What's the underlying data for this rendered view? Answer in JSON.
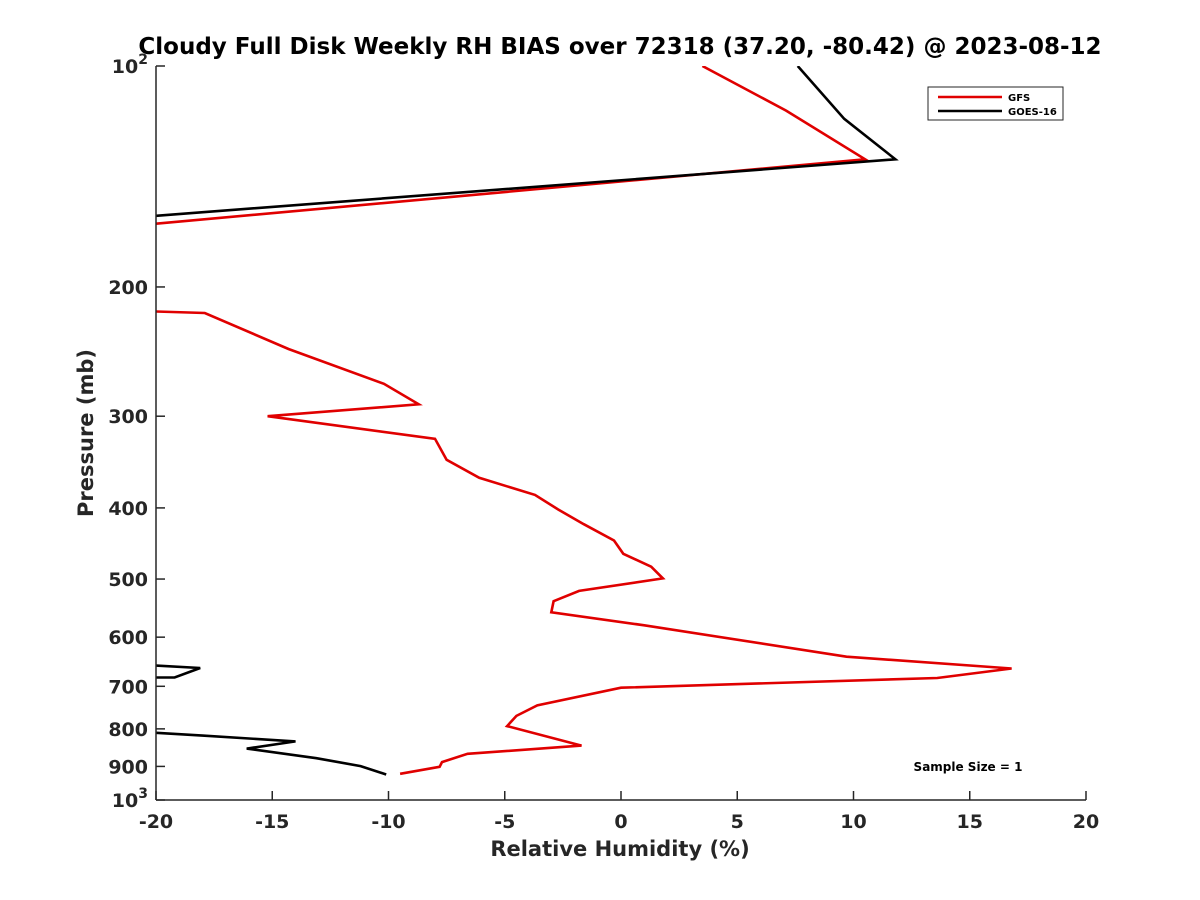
{
  "chart_data": {
    "type": "line",
    "title": "Cloudy Full Disk Weekly RH BIAS over 72318 (37.20, -80.42) @ 2023-08-12",
    "xlabel": "Relative Humidity (%)",
    "ylabel": "Pressure (mb)",
    "xlim": [
      -20,
      20
    ],
    "ylim": [
      100,
      1000
    ],
    "yscale": "log",
    "yreversed": true,
    "grid": false,
    "legend_position": "top-right",
    "x_ticks": [
      {
        "value": -20,
        "label": "-20"
      },
      {
        "value": -15,
        "label": "-15"
      },
      {
        "value": -10,
        "label": "-10"
      },
      {
        "value": -5,
        "label": "-5"
      },
      {
        "value": 0,
        "label": "0"
      },
      {
        "value": 5,
        "label": "5"
      },
      {
        "value": 10,
        "label": "10"
      },
      {
        "value": 15,
        "label": "15"
      },
      {
        "value": 20,
        "label": "20"
      }
    ],
    "y_ticks": [
      {
        "value": 100,
        "label": "",
        "base": "10",
        "exp": "2"
      },
      {
        "value": 200,
        "label": "200"
      },
      {
        "value": 300,
        "label": "300"
      },
      {
        "value": 400,
        "label": "400"
      },
      {
        "value": 500,
        "label": "500"
      },
      {
        "value": 600,
        "label": "600"
      },
      {
        "value": 700,
        "label": "700"
      },
      {
        "value": 800,
        "label": "800"
      },
      {
        "value": 900,
        "label": "900"
      },
      {
        "value": 1000,
        "label": "",
        "base": "10",
        "exp": "3"
      }
    ],
    "series": [
      {
        "name": "GFS",
        "color": "#e00000",
        "segments": [
          [
            [
              3.5,
              100
            ],
            [
              7.1,
              115
            ],
            [
              10.5,
              134
            ],
            [
              -20,
              164
            ]
          ],
          [
            [
              -20,
              216
            ],
            [
              -17.9,
              217
            ],
            [
              -14.3,
              243
            ],
            [
              -10.2,
              271
            ],
            [
              -8.7,
              289
            ],
            [
              -15.2,
              300
            ],
            [
              -8.0,
              322
            ],
            [
              -7.5,
              344
            ],
            [
              -6.1,
              364
            ],
            [
              -3.7,
              384
            ],
            [
              -2.7,
              402
            ],
            [
              -1.6,
              421
            ],
            [
              -0.3,
              443
            ],
            [
              0.1,
              462
            ],
            [
              1.3,
              481
            ],
            [
              1.8,
              499
            ],
            [
              -1.8,
              519
            ],
            [
              -2.9,
              536
            ],
            [
              -3.0,
              555
            ],
            [
              1.0,
              578
            ],
            [
              9.7,
              638
            ],
            [
              16.8,
              662
            ],
            [
              13.6,
              682
            ],
            [
              0,
              703
            ],
            [
              -3.6,
              743
            ],
            [
              -4.5,
              768
            ],
            [
              -4.9,
              793
            ],
            [
              -1.7,
              843
            ],
            [
              -6.6,
              865
            ],
            [
              -7.7,
              888
            ],
            [
              -7.8,
              901
            ],
            [
              -9.5,
              921
            ]
          ]
        ]
      },
      {
        "name": "GOES-16",
        "color": "#000000",
        "segments": [
          [
            [
              7.6,
              100
            ],
            [
              9.6,
              118
            ],
            [
              11.8,
              134
            ],
            [
              -20,
              160
            ]
          ],
          [
            [
              -20,
              656
            ],
            [
              -18.1,
              661
            ],
            [
              -19.2,
              681
            ],
            [
              -20,
              681
            ]
          ],
          [
            [
              -20,
              810
            ],
            [
              -18.0,
              817
            ],
            [
              -14.0,
              832
            ],
            [
              -16.1,
              851
            ],
            [
              -13.1,
              877
            ],
            [
              -11.2,
              899
            ],
            [
              -10.1,
              923
            ]
          ]
        ]
      }
    ],
    "annotation": "Sample Size = 1"
  },
  "colors": {
    "axis": "#262626",
    "legend_border": "#262626"
  }
}
